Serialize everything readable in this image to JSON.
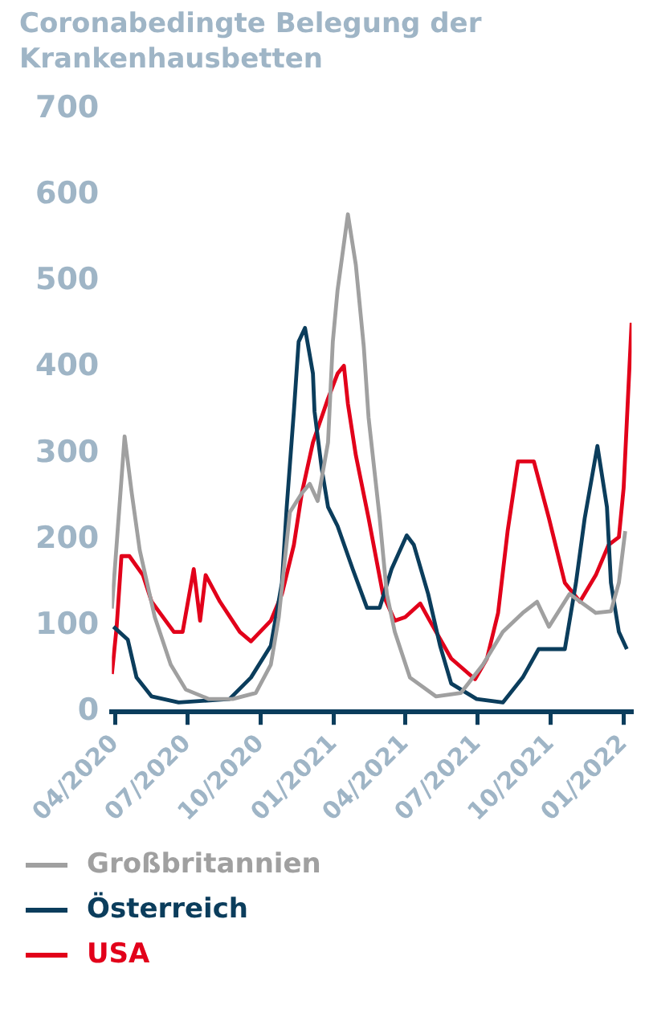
{
  "chart_data": {
    "type": "line",
    "title": "Coronabedingte Belegung der Krankenhausbetten",
    "xlim": [
      "2020-03-28",
      "2022-01-11"
    ],
    "xticks": [
      {
        "value": "2020-04",
        "label": "04/2020"
      },
      {
        "value": "2020-07",
        "label": "07/2020"
      },
      {
        "value": "2020-10",
        "label": "10/2020"
      },
      {
        "value": "2021-01",
        "label": "01/2021"
      },
      {
        "value": "2021-04",
        "label": "04/2021"
      },
      {
        "value": "2021-07",
        "label": "07/2021"
      },
      {
        "value": "2021-10",
        "label": "10/2021"
      },
      {
        "value": "2022-01",
        "label": "01/2022"
      }
    ],
    "ylim": [
      0,
      700
    ],
    "yticks": [
      0,
      100,
      200,
      300,
      400,
      500,
      600,
      700
    ],
    "grid": false,
    "legend": "bottom",
    "marker": "none",
    "line_style": "solid",
    "series": [
      {
        "name": "Großbritannien",
        "color": "#a0a0a0",
        "x": [
          "2020-03-28",
          "2020-04-13",
          "2020-04-22",
          "2020-05-02",
          "2020-05-21",
          "2020-06-10",
          "2020-06-29",
          "2020-07-28",
          "2020-08-27",
          "2020-09-25",
          "2020-10-14",
          "2020-10-24",
          "2020-11-07",
          "2020-11-22",
          "2020-12-02",
          "2020-12-12",
          "2020-12-25",
          "2020-12-31",
          "2021-01-06",
          "2021-01-19",
          "2021-01-29",
          "2021-02-08",
          "2021-02-14",
          "2021-02-28",
          "2021-03-09",
          "2021-03-19",
          "2021-04-07",
          "2021-05-10",
          "2021-06-10",
          "2021-07-08",
          "2021-08-02",
          "2021-08-27",
          "2021-09-14",
          "2021-09-29",
          "2021-10-25",
          "2021-11-27",
          "2021-12-16",
          "2021-12-26",
          "2022-01-03"
        ],
        "values": [
          120,
          320,
          254,
          188,
          110,
          55,
          26,
          15,
          15,
          22,
          55,
          110,
          232,
          254,
          265,
          245,
          313,
          430,
          490,
          578,
          519,
          424,
          342,
          225,
          137,
          93,
          40,
          18,
          22,
          55,
          93,
          115,
          128,
          99,
          137,
          115,
          117,
          150,
          210
        ]
      },
      {
        "name": "Österreich",
        "color": "#0b3d5c",
        "x": [
          "2020-03-30",
          "2020-04-17",
          "2020-04-28",
          "2020-05-17",
          "2020-06-20",
          "2020-08-23",
          "2020-09-19",
          "2020-10-14",
          "2020-10-28",
          "2020-11-03",
          "2020-11-12",
          "2020-11-18",
          "2020-11-26",
          "2020-12-06",
          "2020-12-08",
          "2020-12-17",
          "2020-12-25",
          "2021-01-06",
          "2021-01-25",
          "2021-02-12",
          "2021-02-28",
          "2021-03-15",
          "2021-04-03",
          "2021-04-12",
          "2021-04-30",
          "2021-05-15",
          "2021-05-29",
          "2021-06-30",
          "2021-08-02",
          "2021-08-27",
          "2021-09-16",
          "2021-10-19",
          "2021-11-02",
          "2021-11-13",
          "2021-11-29",
          "2021-12-11",
          "2021-12-16",
          "2021-12-26",
          "2022-01-05"
        ],
        "values": [
          99,
          84,
          40,
          18,
          11,
          15,
          40,
          77,
          150,
          238,
          349,
          430,
          446,
          393,
          349,
          283,
          238,
          216,
          166,
          121,
          121,
          166,
          205,
          194,
          137,
          77,
          33,
          15,
          11,
          40,
          73,
          73,
          150,
          225,
          309,
          238,
          150,
          93,
          73
        ]
      },
      {
        "name": "USA",
        "color": "#e2001a",
        "x": [
          "2020-03-28",
          "2020-04-03",
          "2020-04-09",
          "2020-04-19",
          "2020-05-06",
          "2020-05-17",
          "2020-06-14",
          "2020-06-25",
          "2020-07-09",
          "2020-07-17",
          "2020-07-24",
          "2020-08-11",
          "2020-09-05",
          "2020-09-19",
          "2020-10-14",
          "2020-10-28",
          "2020-11-12",
          "2020-11-22",
          "2020-12-06",
          "2020-12-25",
          "2021-01-06",
          "2021-01-14",
          "2021-01-19",
          "2021-01-29",
          "2021-02-14",
          "2021-03-04",
          "2021-03-19",
          "2021-04-01",
          "2021-04-20",
          "2021-05-02",
          "2021-05-29",
          "2021-06-28",
          "2021-07-13",
          "2021-07-27",
          "2021-08-08",
          "2021-08-21",
          "2021-09-10",
          "2021-09-29",
          "2021-10-19",
          "2021-11-07",
          "2021-11-27",
          "2021-12-13",
          "2021-12-26",
          "2022-01-01",
          "2022-01-11"
        ],
        "values": [
          44,
          99,
          181,
          181,
          159,
          128,
          93,
          93,
          166,
          106,
          159,
          128,
          93,
          82,
          106,
          137,
          194,
          254,
          313,
          364,
          393,
          402,
          358,
          298,
          225,
          137,
          106,
          110,
          126,
          106,
          62,
          38,
          62,
          115,
          210,
          291,
          291,
          225,
          150,
          128,
          159,
          194,
          203,
          260,
          452
        ]
      }
    ]
  }
}
